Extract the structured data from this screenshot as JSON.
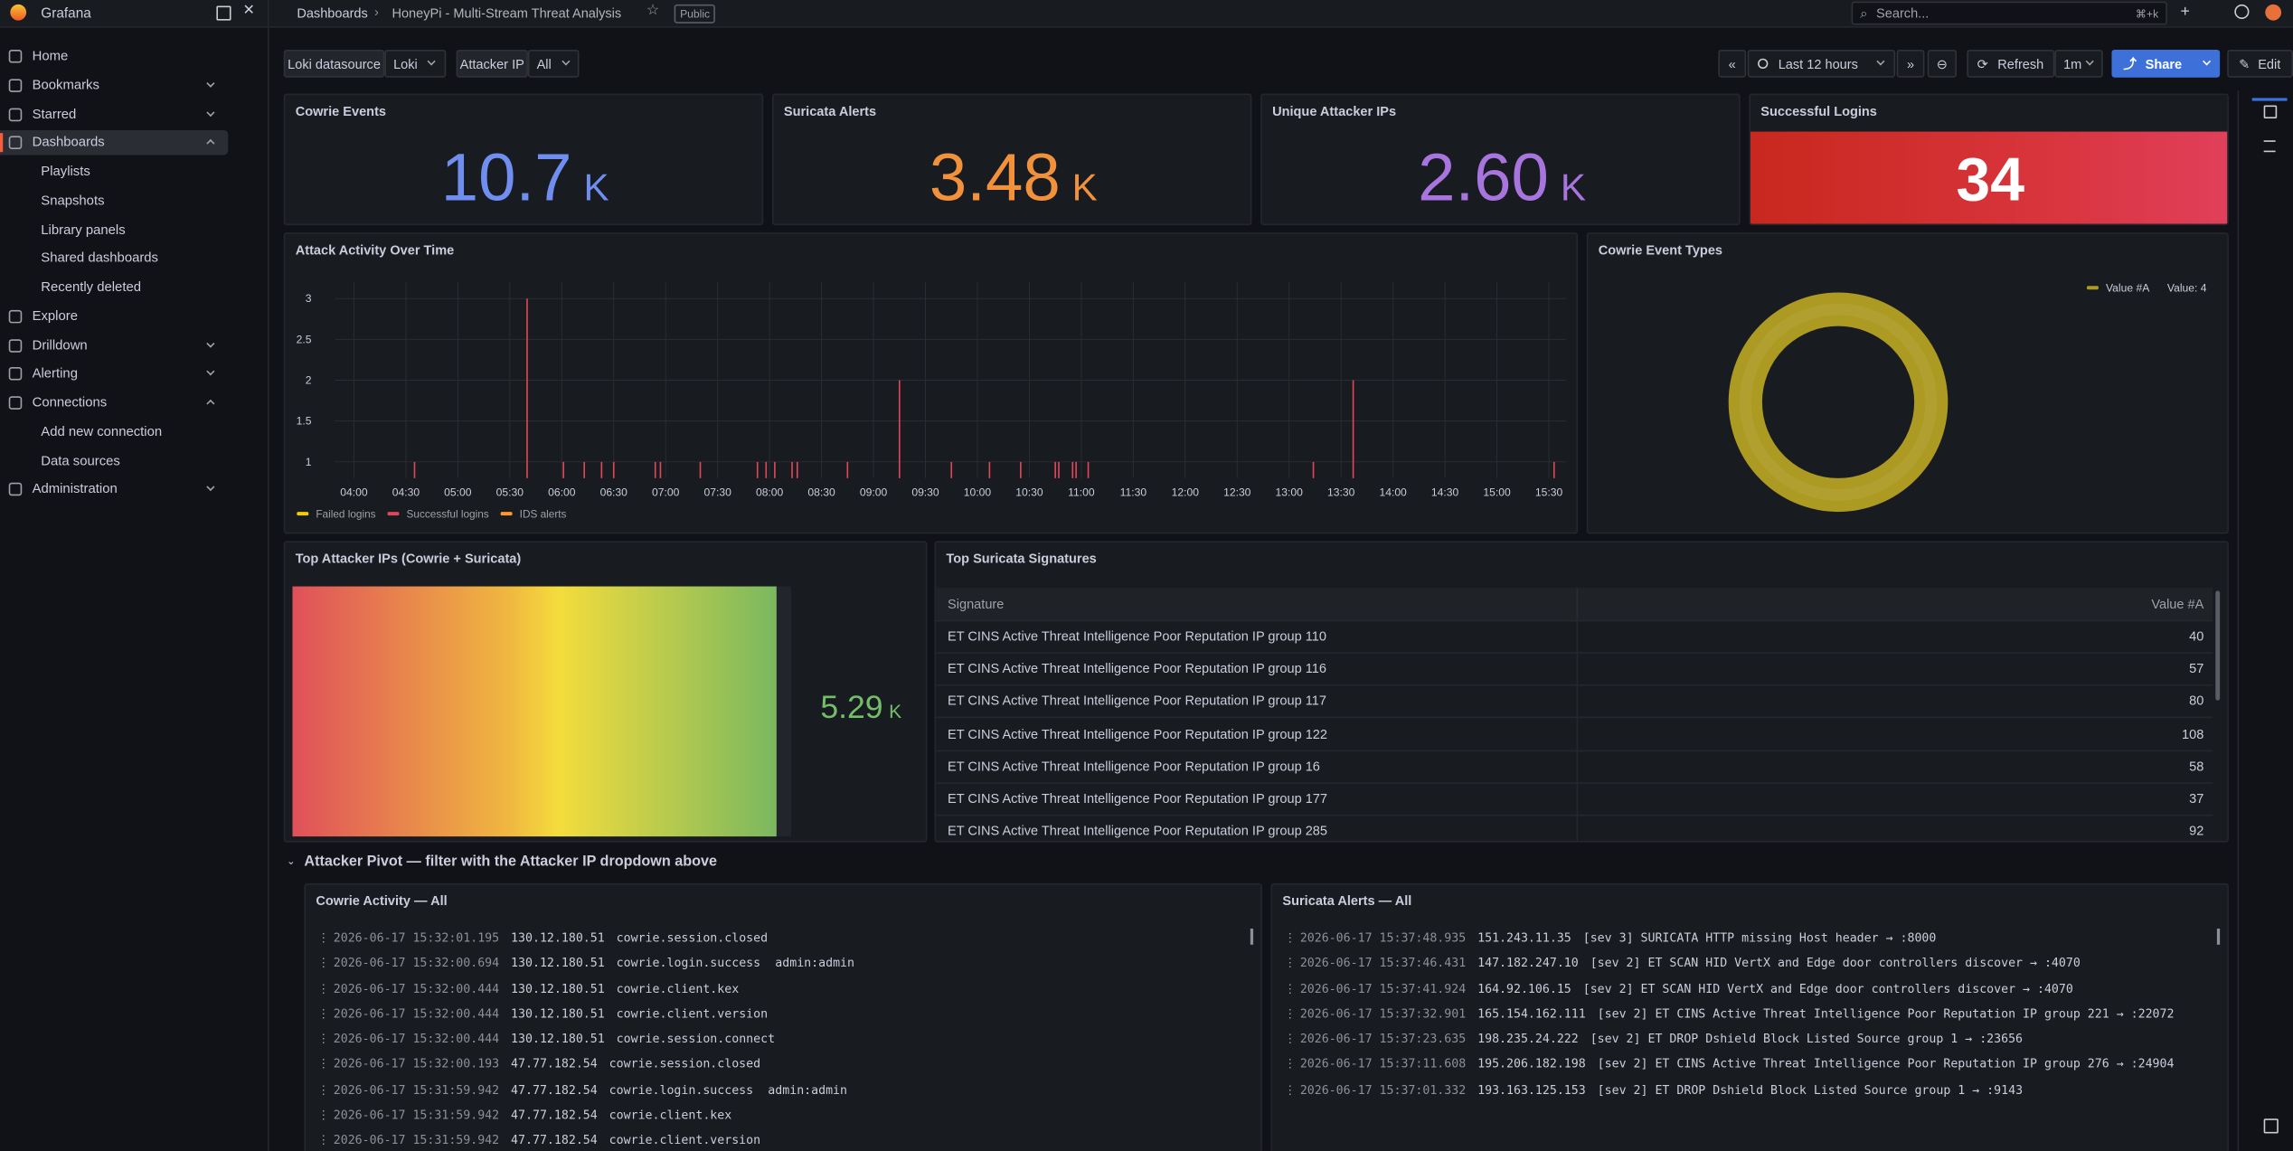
{
  "topbar": {
    "brand": "Grafana",
    "breadcrumb": [
      "Dashboards",
      "HoneyPi - Multi-Stream Threat Analysis"
    ],
    "badge": "Public",
    "search": "Search...",
    "shortcut": "⌘+k"
  },
  "sidebar": {
    "nav": [
      "Home",
      "Bookmarks",
      "Starred",
      "Dashboards",
      "Playlists",
      "Snapshots",
      "Library panels",
      "Shared dashboards",
      "Recently deleted",
      "Explore",
      "Drilldown",
      "Alerting",
      "Connections",
      "Add new connection",
      "Data sources",
      "Administration"
    ]
  },
  "controls": {
    "variables": [
      {
        "label": "Loki datasource",
        "value": "Loki"
      },
      {
        "label": "Attacker IP",
        "value": "All"
      }
    ],
    "time_range": "Last 12 hours",
    "refresh": "Refresh",
    "interval": "1m",
    "share": "Share",
    "edit": "Edit"
  },
  "stats": [
    {
      "title": "Cowrie Events",
      "value": "10.7",
      "unit": "K",
      "color": "#6f8ef0"
    },
    {
      "title": "Suricata Alerts",
      "value": "3.48",
      "unit": "K",
      "color": "#f2913c"
    },
    {
      "title": "Unique Attacker IPs",
      "value": "2.60",
      "unit": "K",
      "color": "#a775dd"
    },
    {
      "title": "Successful Logins",
      "value": "34",
      "color": "#ffffff"
    }
  ],
  "activity": {
    "type": "line",
    "title": "Attack Activity Over Time",
    "xlim": [
      "03:49",
      "15:40"
    ],
    "xticks": [
      "04:00",
      "04:30",
      "05:00",
      "05:30",
      "06:00",
      "06:30",
      "07:00",
      "07:30",
      "08:00",
      "08:30",
      "09:00",
      "09:30",
      "10:00",
      "10:30",
      "11:00",
      "11:30",
      "12:00",
      "12:30",
      "13:00",
      "13:30",
      "14:00",
      "14:30",
      "15:00",
      "15:30"
    ],
    "ylim": [
      0.8,
      3.2
    ],
    "yticks": [
      1,
      1.5,
      2,
      2.5,
      3
    ],
    "grid": true,
    "series": [
      {
        "name": "Failed logins",
        "color": "#f2cc0c"
      },
      {
        "name": "Successful logins",
        "color": "#e0475a",
        "x": [
          "04:35",
          "05:40",
          "06:01",
          "06:13",
          "06:23",
          "06:30",
          "06:54",
          "06:57",
          "07:20",
          "07:53",
          "07:58",
          "08:03",
          "08:13",
          "08:16",
          "08:45",
          "09:15",
          "09:45",
          "10:07",
          "10:25",
          "10:45",
          "10:47",
          "10:55",
          "10:57",
          "11:04",
          "13:14",
          "13:37",
          "15:33"
        ],
        "values": [
          1,
          3,
          1,
          1,
          1,
          1,
          1,
          1,
          1,
          1,
          1,
          1,
          1,
          1,
          1,
          2,
          1,
          1,
          1,
          1,
          1,
          1,
          1,
          1,
          1,
          2,
          1
        ]
      },
      {
        "name": "IDS alerts",
        "color": "#ff9830"
      }
    ]
  },
  "event_types": {
    "type": "pie",
    "title": "Cowrie Event Types",
    "categories": [
      "Value #A"
    ],
    "values": [
      4
    ],
    "value_labels": [
      "Value: 4"
    ],
    "colors": [
      "#ad9a22"
    ],
    "donut": true
  },
  "top_ips": {
    "title": "Top Attacker IPs (Cowrie + Suricata)",
    "value": "5.29",
    "unit": "K"
  },
  "signatures": {
    "title": "Top Suricata Signatures",
    "columns": [
      "Signature",
      "Value #A"
    ],
    "rows": [
      [
        "ET CINS Active Threat Intelligence Poor Reputation IP group 110",
        40
      ],
      [
        "ET CINS Active Threat Intelligence Poor Reputation IP group 116",
        57
      ],
      [
        "ET CINS Active Threat Intelligence Poor Reputation IP group 117",
        80
      ],
      [
        "ET CINS Active Threat Intelligence Poor Reputation IP group 122",
        108
      ],
      [
        "ET CINS Active Threat Intelligence Poor Reputation IP group 16",
        58
      ],
      [
        "ET CINS Active Threat Intelligence Poor Reputation IP group 177",
        37
      ],
      [
        "ET CINS Active Threat Intelligence Poor Reputation IP group 285",
        92
      ]
    ]
  },
  "row_title": "Attacker Pivot — filter with the Attacker IP dropdown above",
  "cowrie_log": {
    "title": "Cowrie Activity — All",
    "lines": [
      {
        "ts": "2026-06-17 15:32:01.195",
        "ip": "130.12.180.51",
        "event": "cowrie.session.closed"
      },
      {
        "ts": "2026-06-17 15:32:00.694",
        "ip": "130.12.180.51",
        "event": "cowrie.login.success",
        "detail": "admin:admin"
      },
      {
        "ts": "2026-06-17 15:32:00.444",
        "ip": "130.12.180.51",
        "event": "cowrie.client.kex"
      },
      {
        "ts": "2026-06-17 15:32:00.444",
        "ip": "130.12.180.51",
        "event": "cowrie.client.version"
      },
      {
        "ts": "2026-06-17 15:32:00.444",
        "ip": "130.12.180.51",
        "event": "cowrie.session.connect"
      },
      {
        "ts": "2026-06-17 15:32:00.193",
        "ip": "47.77.182.54",
        "event": "cowrie.session.closed"
      },
      {
        "ts": "2026-06-17 15:31:59.942",
        "ip": "47.77.182.54",
        "event": "cowrie.login.success",
        "detail": "admin:admin"
      },
      {
        "ts": "2026-06-17 15:31:59.942",
        "ip": "47.77.182.54",
        "event": "cowrie.client.kex"
      },
      {
        "ts": "2026-06-17 15:31:59.942",
        "ip": "47.77.182.54",
        "event": "cowrie.client.version"
      }
    ]
  },
  "suricata_log": {
    "title": "Suricata Alerts — All",
    "lines": [
      {
        "ts": "2026-06-17 15:37:48.935",
        "ip": "151.243.11.35",
        "text": "[sev 3] SURICATA HTTP missing Host header → :8000"
      },
      {
        "ts": "2026-06-17 15:37:46.431",
        "ip": "147.182.247.10",
        "text": "[sev 2] ET SCAN HID VertX and Edge door controllers discover → :4070"
      },
      {
        "ts": "2026-06-17 15:37:41.924",
        "ip": "164.92.106.15",
        "text": "[sev 2] ET SCAN HID VertX and Edge door controllers discover → :4070"
      },
      {
        "ts": "2026-06-17 15:37:32.901",
        "ip": "165.154.162.111",
        "text": "[sev 2] ET CINS Active Threat Intelligence Poor Reputation IP group 221 → :22072"
      },
      {
        "ts": "2026-06-17 15:37:23.635",
        "ip": "198.235.24.222",
        "text": "[sev 2] ET DROP Dshield Block Listed Source group 1 → :23656"
      },
      {
        "ts": "2026-06-17 15:37:11.608",
        "ip": "195.206.182.198",
        "text": "[sev 2] ET CINS Active Threat Intelligence Poor Reputation IP group 276 → :24904"
      },
      {
        "ts": "2026-06-17 15:37:01.332",
        "ip": "193.163.125.153",
        "text": "[sev 2] ET DROP Dshield Block Listed Source group 1 → :9143"
      }
    ]
  }
}
